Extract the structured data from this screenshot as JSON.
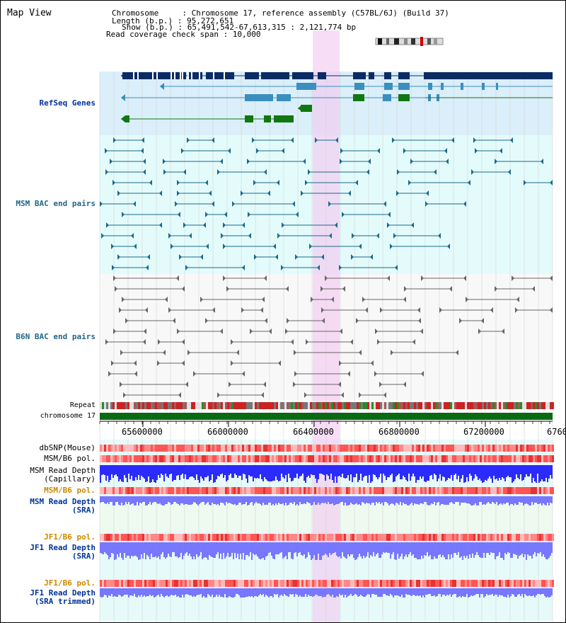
{
  "title": "Map View",
  "info": {
    "chromosome_line": "Chromosome     : Chromosome 17, reference assembly (C57BL/6J) (Build 37)",
    "length_line": "Length (b.p.) : 95,272,651",
    "show_line": "Show (b.p.) : 65,491,542-67,613,315 : 2,121,774 bp",
    "coverage_line": "Read coverage check span : 10,000"
  },
  "tracks": {
    "refseq": "RefSeq Genes",
    "msm_bac": "MSM BAC end pairs",
    "b6n_bac": "B6N BAC end pairs",
    "repeat": "Repeat",
    "chromosome": "chromosome 17",
    "dbsnp": "dbSNP(Mouse)",
    "msm_b6_pol_1": "MSM/B6 pol.",
    "msm_read_depth_cap": "MSM Read Depth\n(Capillary)",
    "msm_b6_pol_2": "MSM/B6 pol.",
    "msm_read_depth_sra": "MSM Read Depth\n(SRA)",
    "jf1_b6_pol_1": "JF1/B6 pol.",
    "jf1_read_depth_sra": "JF1 Read Depth\n(SRA)",
    "jf1_b6_pol_2": "JF1/B6 pol.",
    "jf1_read_depth_trimmed": "JF1 Read Depth\n(SRA trimmed)"
  },
  "ruler": {
    "ticks": [
      "65600000",
      "66000000",
      "66400000",
      "66800000",
      "67200000",
      "6760"
    ]
  },
  "colors": {
    "refseq_band": "#dbeffa",
    "msm_band": "#e4fbfb",
    "b6n_band": "#f7f7f7",
    "highlight": "#f6d6f3",
    "gene_dark": "#0b2c63",
    "gene_mid": "#3b8fbe",
    "gene_green": "#117711",
    "bac_msm": "#1a6a8a",
    "bac_b6n": "#666666",
    "chrom_green": "#0a6a14",
    "label_navy": "#003399",
    "label_orange": "#cc8800",
    "label_teal": "#226688",
    "depth_blue": "#2b2bff",
    "depth_light": "#7777ff"
  }
}
